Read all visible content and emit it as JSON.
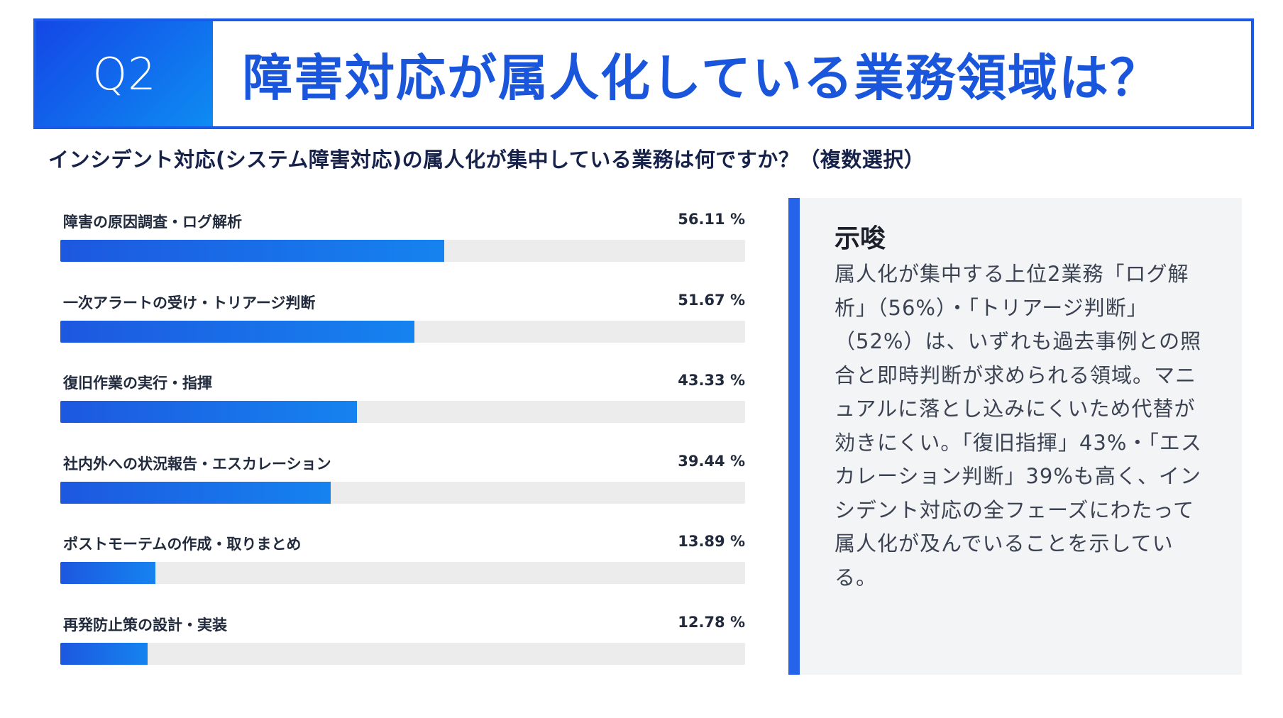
{
  "header": {
    "badge": "Q2",
    "title": "障害対応が属人化している業務領域は？"
  },
  "question": "インシデント対応(システム障害対応)の属人化が集中している業務は何ですか？（複数選択）",
  "chart_data": {
    "type": "bar",
    "orientation": "horizontal",
    "unit": "%",
    "xlim": [
      0,
      100
    ],
    "categories": [
      "障害の原因調査・ログ解析",
      "一次アラートの受け・トリアージ判断",
      "復旧作業の実行・指揮",
      "社内外への状況報告・エスカレーション",
      "ポストモーテムの作成・取りまとめ",
      "再発防止策の設計・実装"
    ],
    "values": [
      56.11,
      51.67,
      43.33,
      39.44,
      13.89,
      12.78
    ],
    "value_labels": [
      "56.11 %",
      "51.67 %",
      "43.33 %",
      "39.44 %",
      "13.89 %",
      "12.78 %"
    ],
    "bar_color": "#1d58e0",
    "track_color": "#ececec"
  },
  "insight": {
    "title": "示唆",
    "text": "属人化が集中する上位2業務「ログ解析」（56%）・「トリアージ判断」（52%）は、いずれも過去事例との照合と即時判断が求められる領域。マニュアルに落とし込みにくいため代替が効きにくい。「復旧指揮」43%・「エスカレーション判断」39%も高く、インシデント対応の全フェーズにわたって属人化が及んでいることを示している。"
  },
  "colors": {
    "accent": "#1a56db",
    "badge_gradient_start": "#1447e6",
    "badge_gradient_end": "#0e8cf2",
    "panel_bg": "#f3f4f6"
  }
}
